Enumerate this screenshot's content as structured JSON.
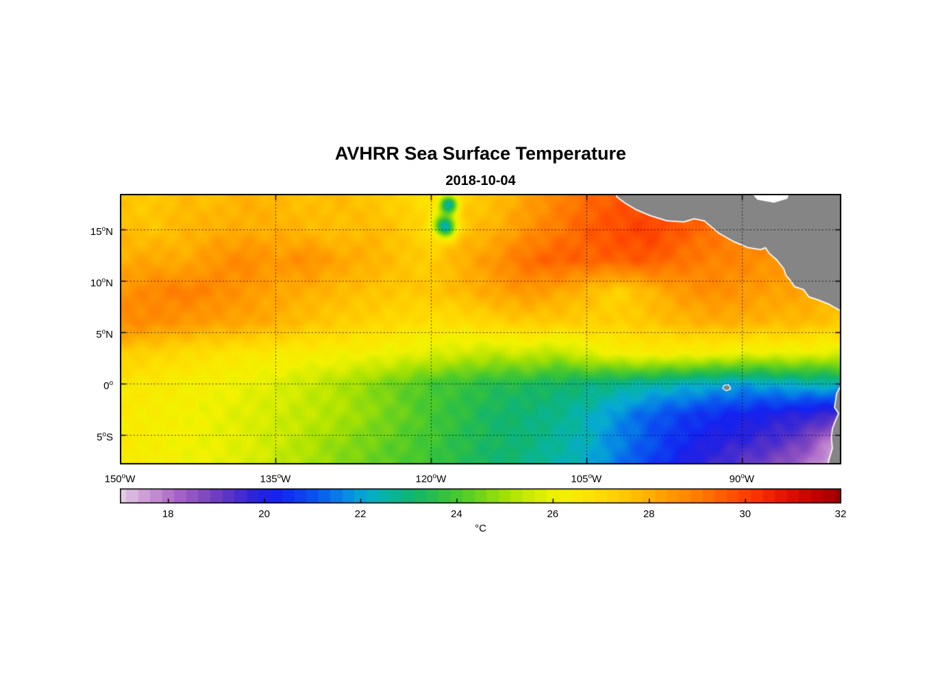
{
  "chart_data": {
    "type": "heatmap",
    "title": "AVHRR Sea Surface Temperature",
    "subtitle": "2018-10-04",
    "units": "°C",
    "degree_symbol": "o",
    "lon_range": [
      -150,
      -80.4
    ],
    "lat_range": [
      -7.87,
      18.47
    ],
    "x_ticks": [
      {
        "value": "150",
        "hemi": "W",
        "lon": -150
      },
      {
        "value": "135",
        "hemi": "W",
        "lon": -135
      },
      {
        "value": "120",
        "hemi": "W",
        "lon": -120
      },
      {
        "value": "105",
        "hemi": "W",
        "lon": -105
      },
      {
        "value": "90",
        "hemi": "W",
        "lon": -90
      }
    ],
    "y_ticks": [
      {
        "value": "15",
        "hemi": "N",
        "lat": 15
      },
      {
        "value": "10",
        "hemi": "N",
        "lat": 10
      },
      {
        "value": "5",
        "hemi": "N",
        "lat": 5
      },
      {
        "value": "0",
        "hemi": "",
        "lat": 0
      },
      {
        "value": "5",
        "hemi": "S",
        "lat": -5
      }
    ],
    "grid": "dotted",
    "colorbar": {
      "min": 17,
      "max": 32,
      "ticks": [
        18,
        20,
        22,
        24,
        26,
        28,
        30,
        32
      ]
    },
    "colormap": [
      {
        "t": 17.0,
        "c": "#E4CCE4"
      },
      {
        "t": 17.6,
        "c": "#C896D2"
      },
      {
        "t": 18.2,
        "c": "#A864C8"
      },
      {
        "t": 18.8,
        "c": "#7E46BE"
      },
      {
        "t": 19.3,
        "c": "#5532C8"
      },
      {
        "t": 19.8,
        "c": "#2A22DC"
      },
      {
        "t": 20.3,
        "c": "#1422F0"
      },
      {
        "t": 21.0,
        "c": "#0A50F0"
      },
      {
        "t": 21.6,
        "c": "#0682E6"
      },
      {
        "t": 22.1,
        "c": "#06AAD2"
      },
      {
        "t": 22.6,
        "c": "#08B49C"
      },
      {
        "t": 23.1,
        "c": "#12B46E"
      },
      {
        "t": 23.6,
        "c": "#2CBE46"
      },
      {
        "t": 24.1,
        "c": "#4CCA2C"
      },
      {
        "t": 24.6,
        "c": "#7CD614"
      },
      {
        "t": 25.1,
        "c": "#AAE202"
      },
      {
        "t": 25.6,
        "c": "#D2EC00"
      },
      {
        "t": 26.1,
        "c": "#F2F200"
      },
      {
        "t": 26.7,
        "c": "#FCE400"
      },
      {
        "t": 27.3,
        "c": "#FFD000"
      },
      {
        "t": 27.9,
        "c": "#FFB400"
      },
      {
        "t": 28.5,
        "c": "#FF9600"
      },
      {
        "t": 29.1,
        "c": "#FF7800"
      },
      {
        "t": 29.7,
        "c": "#FF5200"
      },
      {
        "t": 30.3,
        "c": "#FA2E00"
      },
      {
        "t": 30.9,
        "c": "#E00E00"
      },
      {
        "t": 31.5,
        "c": "#C00000"
      },
      {
        "t": 32.0,
        "c": "#9A0000"
      }
    ],
    "grid_lons": [
      -150,
      -147,
      -144,
      -141,
      -138,
      -135,
      -132,
      -129,
      -126,
      -123,
      -120,
      -117,
      -114,
      -111,
      -108,
      -105,
      -102,
      -99,
      -96,
      -93,
      -90,
      -87,
      -84,
      -81
    ],
    "grid_lats": [
      18,
      15,
      12,
      9,
      6,
      3,
      0,
      -3,
      -6,
      -9
    ],
    "sst": [
      [
        27.5,
        27.4,
        27.8,
        27.6,
        28.0,
        27.8,
        27.6,
        27.8,
        27.5,
        27.2,
        26.8,
        27.3,
        27.6,
        28.2,
        28.8,
        29.3,
        29.6,
        29.8,
        29.5,
        29.3,
        29.0,
        28.8,
        28.6,
        28.5
      ],
      [
        27.8,
        27.5,
        27.8,
        28.0,
        28.0,
        28.0,
        27.8,
        27.6,
        27.8,
        27.5,
        27.0,
        27.6,
        27.9,
        28.5,
        29.0,
        29.5,
        29.8,
        30.0,
        29.6,
        29.2,
        29.0,
        28.8,
        28.5,
        28.4
      ],
      [
        28.0,
        28.2,
        28.0,
        28.5,
        28.8,
        28.4,
        28.7,
        28.2,
        28.0,
        27.6,
        27.3,
        28.0,
        28.5,
        29.2,
        29.5,
        29.4,
        29.5,
        29.6,
        29.2,
        28.9,
        28.8,
        28.5,
        28.3,
        28.0
      ],
      [
        28.5,
        28.8,
        29.0,
        28.8,
        28.5,
        28.2,
        28.0,
        27.8,
        27.6,
        27.5,
        27.5,
        27.8,
        28.2,
        28.5,
        28.2,
        27.8,
        27.2,
        27.8,
        28.4,
        28.7,
        28.5,
        28.3,
        28.2,
        28.0
      ],
      [
        28.8,
        28.7,
        28.5,
        28.3,
        28.2,
        28.0,
        27.6,
        27.4,
        27.2,
        27.0,
        26.8,
        26.9,
        27.2,
        27.4,
        27.4,
        27.3,
        27.3,
        27.5,
        27.8,
        28.0,
        28.0,
        27.8,
        27.8,
        27.5
      ],
      [
        27.4,
        27.2,
        27.0,
        26.8,
        26.6,
        26.5,
        26.4,
        26.3,
        26.2,
        26.0,
        25.8,
        25.6,
        25.4,
        25.6,
        25.2,
        25.8,
        26.2,
        26.4,
        26.3,
        26.2,
        26.0,
        26.0,
        26.0,
        25.8
      ],
      [
        26.6,
        26.5,
        26.3,
        26.2,
        26.0,
        25.8,
        25.5,
        25.2,
        24.8,
        24.4,
        24.0,
        23.8,
        23.5,
        23.4,
        23.2,
        23.0,
        22.8,
        22.6,
        22.4,
        22.2,
        22.0,
        22.2,
        22.4,
        22.5
      ],
      [
        26.5,
        26.3,
        26.2,
        26.0,
        25.8,
        25.6,
        25.4,
        25.2,
        24.8,
        24.4,
        24.0,
        23.6,
        23.2,
        23.0,
        22.8,
        22.4,
        21.8,
        21.2,
        20.8,
        20.5,
        20.3,
        20.0,
        19.8,
        19.5
      ],
      [
        26.5,
        26.3,
        26.1,
        26.0,
        25.8,
        25.5,
        25.2,
        24.8,
        24.5,
        24.2,
        23.9,
        23.5,
        23.2,
        23.0,
        22.6,
        22.3,
        21.6,
        21.0,
        20.4,
        19.9,
        19.6,
        19.3,
        18.8,
        17.5
      ],
      [
        26.5,
        26.3,
        26.1,
        26.0,
        25.8,
        25.4,
        25.1,
        24.7,
        24.4,
        24.1,
        23.8,
        23.4,
        23.1,
        22.8,
        22.4,
        22.1,
        21.4,
        20.7,
        20.0,
        19.4,
        19.0,
        18.5,
        17.8,
        16.8
      ]
    ],
    "cold_spots": [
      {
        "lon": -118.3,
        "lat": 17.4,
        "radius": 0.9,
        "delta": -4.5
      },
      {
        "lon": -118.6,
        "lat": 15.3,
        "radius": 1.05,
        "delta": -5.0
      }
    ],
    "land": {
      "polygons": [
        {
          "name": "cloud-patch-mexico-coast",
          "fill": "#FFFFFF",
          "stroke": "",
          "pts": [
            [
              -101.8,
              18.5
            ],
            [
              -100.3,
              17.8
            ],
            [
              -99.0,
              17.5
            ],
            [
              -99.4,
              18.5
            ]
          ]
        },
        {
          "name": "central-america",
          "fill": "#858585",
          "stroke": "#FFFFFF",
          "pts": [
            [
              -102.2,
              19.5
            ],
            [
              -102.0,
              18.2
            ],
            [
              -101.2,
              17.6
            ],
            [
              -100.2,
              17.0
            ],
            [
              -98.8,
              16.4
            ],
            [
              -97.2,
              15.9
            ],
            [
              -95.6,
              15.8
            ],
            [
              -94.6,
              16.1
            ],
            [
              -93.6,
              15.9
            ],
            [
              -92.2,
              14.7
            ],
            [
              -90.8,
              13.9
            ],
            [
              -89.4,
              13.3
            ],
            [
              -88.2,
              13.1
            ],
            [
              -87.7,
              13.3
            ],
            [
              -87.3,
              12.7
            ],
            [
              -86.6,
              12.1
            ],
            [
              -85.9,
              11.2
            ],
            [
              -85.7,
              10.6
            ],
            [
              -85.2,
              10.0
            ],
            [
              -84.9,
              9.5
            ],
            [
              -84.0,
              9.2
            ],
            [
              -83.5,
              8.5
            ],
            [
              -82.6,
              8.2
            ],
            [
              -81.6,
              7.8
            ],
            [
              -80.9,
              7.4
            ],
            [
              -80.2,
              7.0
            ],
            [
              -79.0,
              7.2
            ],
            [
              -79.0,
              19.5
            ]
          ]
        },
        {
          "name": "caribbean-gap",
          "fill": "#FFFFFF",
          "stroke": "",
          "pts": [
            [
              -89.3,
              18.8
            ],
            [
              -88.5,
              17.9
            ],
            [
              -86.9,
              17.6
            ],
            [
              -85.6,
              18.0
            ],
            [
              -85.3,
              18.8
            ]
          ]
        },
        {
          "name": "south-america",
          "fill": "#858585",
          "stroke": "#FFFFFF",
          "pts": [
            [
              -79.0,
              0.3
            ],
            [
              -80.2,
              -0.1
            ],
            [
              -80.55,
              -0.5
            ],
            [
              -80.8,
              -1.0
            ],
            [
              -80.9,
              -1.7
            ],
            [
              -81.0,
              -2.3
            ],
            [
              -80.6,
              -2.9
            ],
            [
              -80.9,
              -3.6
            ],
            [
              -81.2,
              -4.4
            ],
            [
              -81.3,
              -5.3
            ],
            [
              -81.2,
              -6.3
            ],
            [
              -81.5,
              -7.3
            ],
            [
              -81.8,
              -8.6
            ],
            [
              -78.5,
              -8.6
            ]
          ]
        },
        {
          "name": "galapagos-island",
          "fill": "#858585",
          "stroke": "#FFFFFF",
          "pts": [
            [
              -91.7,
              -0.2
            ],
            [
              -91.3,
              -0.15
            ],
            [
              -91.1,
              -0.5
            ],
            [
              -91.5,
              -0.65
            ],
            [
              -91.8,
              -0.45
            ]
          ]
        }
      ]
    }
  }
}
